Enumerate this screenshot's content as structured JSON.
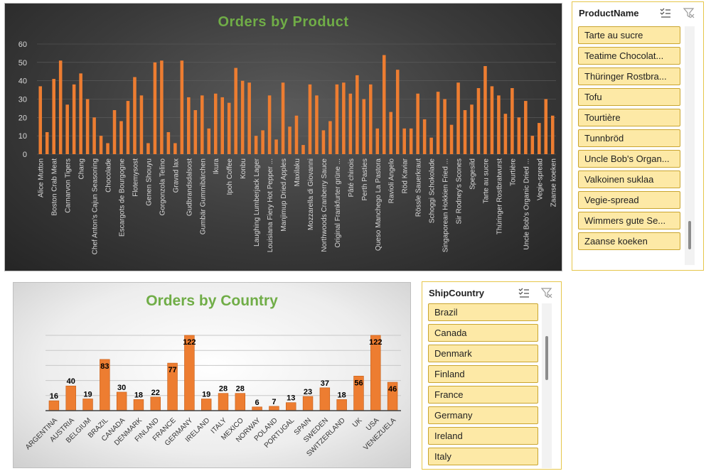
{
  "product_chart": {
    "title": "Orders by Product",
    "colors": {
      "bar": "#ed7d31",
      "axis_text": "#d9d9d9",
      "grid": "#5f5f5f"
    }
  },
  "country_chart": {
    "title": "Orders by Country",
    "colors": {
      "bar": "#ed7d31",
      "bar_border": "#c55a11",
      "label": "#000000",
      "grid": "#c8c8c8"
    }
  },
  "slicers": {
    "product": {
      "header": "ProductName",
      "items": [
        "Tarte au sucre",
        "Teatime Chocolat...",
        "Thüringer Rostbra...",
        "Tofu",
        "Tourtière",
        "Tunnbröd",
        "Uncle Bob's Organ...",
        "Valkoinen suklaa",
        "Vegie-spread",
        "Wimmers gute Se...",
        "Zaanse koeken"
      ],
      "icons": [
        "multi-select-icon",
        "clear-filter-icon"
      ]
    },
    "country": {
      "header": "ShipCountry",
      "items": [
        "Brazil",
        "Canada",
        "Denmark",
        "Finland",
        "France",
        "Germany",
        "Ireland",
        "Italy"
      ],
      "icons": [
        "multi-select-icon",
        "clear-filter-icon"
      ]
    }
  },
  "chart_data": [
    {
      "type": "bar",
      "title": "Orders by Product",
      "ylim": [
        0,
        60
      ],
      "yticks": [
        0,
        10,
        20,
        30,
        40,
        50,
        60
      ],
      "grid": true,
      "legend": "none",
      "tick_labels": [
        "Alice Mutton",
        "Boston Crab Meat",
        "Carnarvon Tigers",
        "Chang",
        "Chef Anton's Cajun Seasoning",
        "Chocolade",
        "Escargots de Bourgogne",
        "Flotemysost",
        "Genen Shouyu",
        "Gorgonzola Telino",
        "Gravad lax",
        "Gudbrandsdalsost",
        "Gumbär Gummibärchen",
        "Ikura",
        "Ipoh Coffee",
        "Konbu",
        "Laughing Lumberjack Lager",
        "Louisiana Fiery Hot Pepper ...",
        "Manjimup Dried Apples",
        "Maxilaku",
        "Mozzarella di Giovanni",
        "Northwoods Cranberry Sauce",
        "Original Frankfurter grüne ...",
        "Pâté chinois",
        "Perth Pasties",
        "Queso Manchego La Pastora",
        "Ravioli Angelo",
        "Röd Kaviar",
        "Rössle Sauerkraut",
        "Schoggi Schokolade",
        "Singaporean Hokkien Fried ...",
        "Sir Rodney's Scones",
        "Spegesild",
        "Tarte au sucre",
        "Thüringer Rostbratwurst",
        "Tourtière",
        "Uncle Bob's Organic Dried ...",
        "Vegie-spread",
        "Zaanse koeken"
      ],
      "values": [
        37,
        12,
        41,
        51,
        27,
        38,
        44,
        30,
        20,
        10,
        6,
        24,
        18,
        29,
        42,
        32,
        6,
        50,
        51,
        12,
        6,
        51,
        31,
        24,
        32,
        14,
        33,
        31,
        28,
        47,
        40,
        39,
        10,
        13,
        32,
        8,
        39,
        15,
        21,
        5,
        38,
        32,
        13,
        18,
        38,
        39,
        33,
        43,
        30,
        38,
        14,
        54,
        23,
        46,
        14,
        14,
        33,
        19,
        9,
        34,
        30,
        16,
        39,
        24,
        27,
        36,
        48,
        37,
        32,
        22,
        36,
        20,
        29,
        10,
        17,
        30,
        21
      ]
    },
    {
      "type": "bar",
      "title": "Orders by Country",
      "ylim": [
        0,
        122
      ],
      "grid": true,
      "legend": "none",
      "categories": [
        "ARGENTINA",
        "AUSTRIA",
        "BELGIUM",
        "BRAZIL",
        "CANADA",
        "DENMARK",
        "FINLAND",
        "FRANCE",
        "GERMANY",
        "IRELAND",
        "ITALY",
        "MEXICO",
        "NORWAY",
        "POLAND",
        "PORTUGAL",
        "SPAIN",
        "SWEDEN",
        "SWITZERLAND",
        "UK",
        "USA",
        "VENEZUELA"
      ],
      "values": [
        16,
        40,
        19,
        83,
        30,
        18,
        22,
        77,
        122,
        19,
        28,
        28,
        6,
        7,
        13,
        23,
        37,
        18,
        56,
        122,
        46
      ]
    }
  ]
}
